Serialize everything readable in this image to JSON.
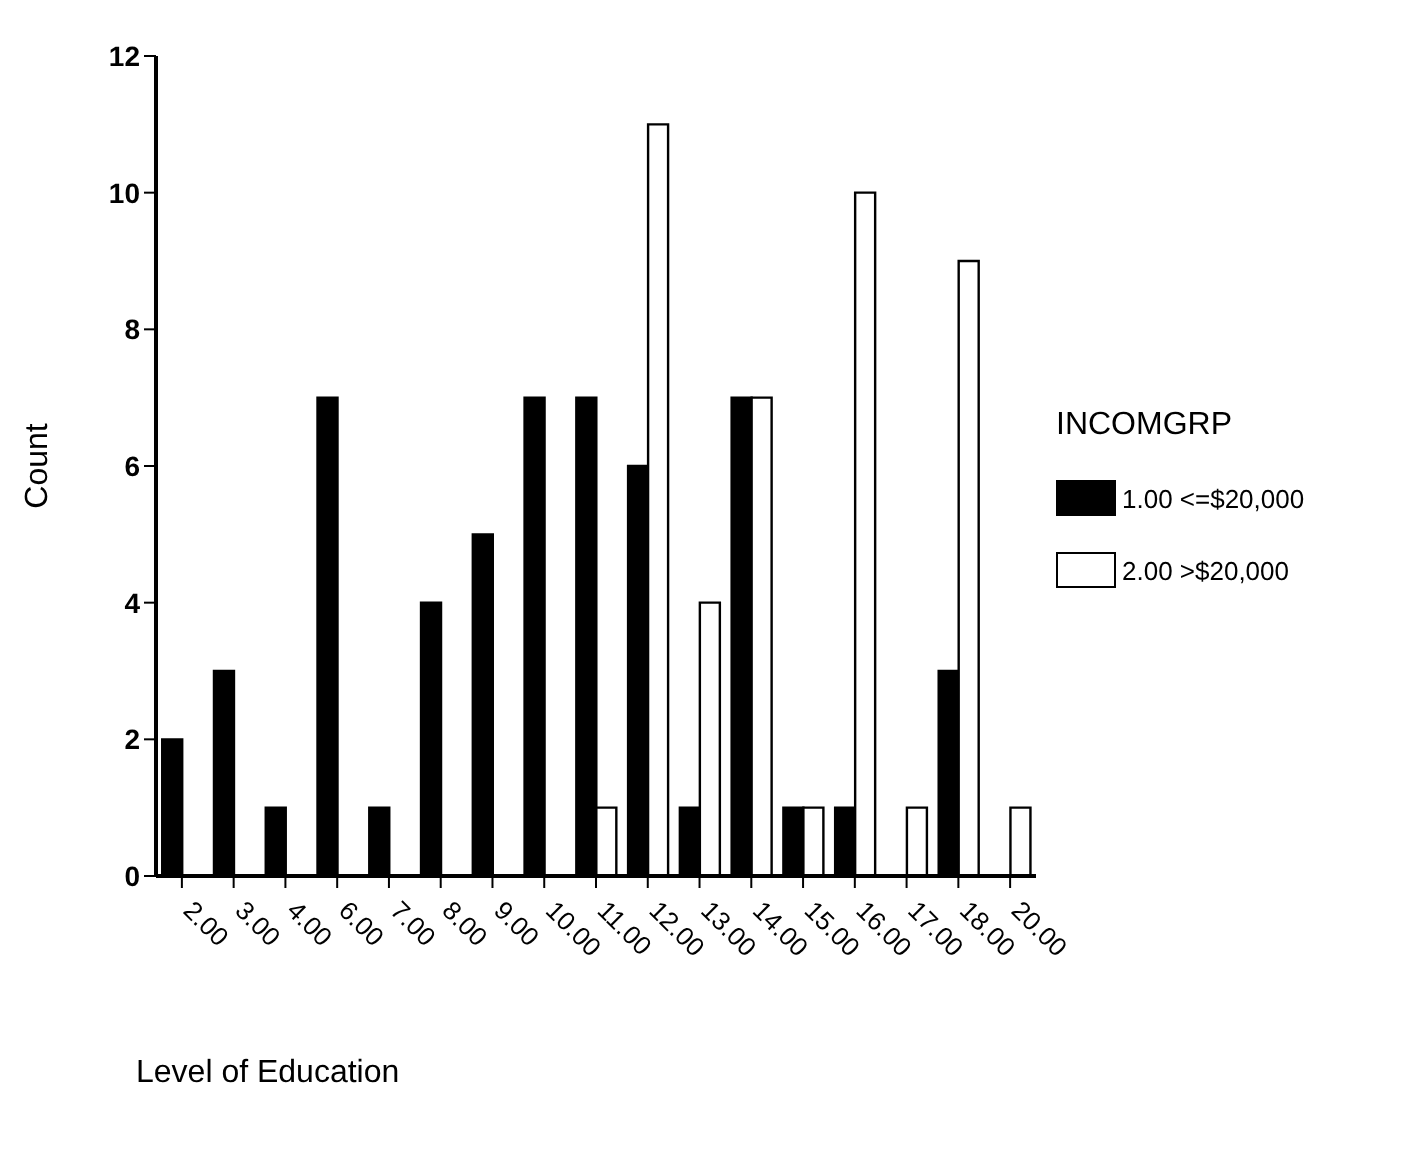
{
  "chart_data": {
    "type": "bar",
    "xlabel": "Level of Education",
    "ylabel": "Count",
    "legend_title": "INCOMGRP",
    "categories": [
      "2.00",
      "3.00",
      "4.00",
      "6.00",
      "7.00",
      "8.00",
      "9.00",
      "10.00",
      "11.00",
      "12.00",
      "13.00",
      "14.00",
      "15.00",
      "16.00",
      "17.00",
      "18.00",
      "20.00"
    ],
    "series": [
      {
        "name": "1.00 <=$20,000",
        "color": "#000000",
        "values": [
          2,
          3,
          1,
          7,
          1,
          4,
          5,
          7,
          7,
          6,
          1,
          7,
          1,
          1,
          null,
          3,
          null
        ]
      },
      {
        "name": "2.00 >$20,000",
        "color": "#ffffff",
        "values": [
          null,
          null,
          null,
          null,
          null,
          null,
          null,
          null,
          1,
          11,
          4,
          7,
          1,
          10,
          1,
          9,
          1
        ]
      }
    ],
    "ylim": [
      0,
      12
    ],
    "yticks": [
      0,
      2,
      4,
      6,
      8,
      10,
      12
    ],
    "grid": false,
    "legend": "right"
  }
}
